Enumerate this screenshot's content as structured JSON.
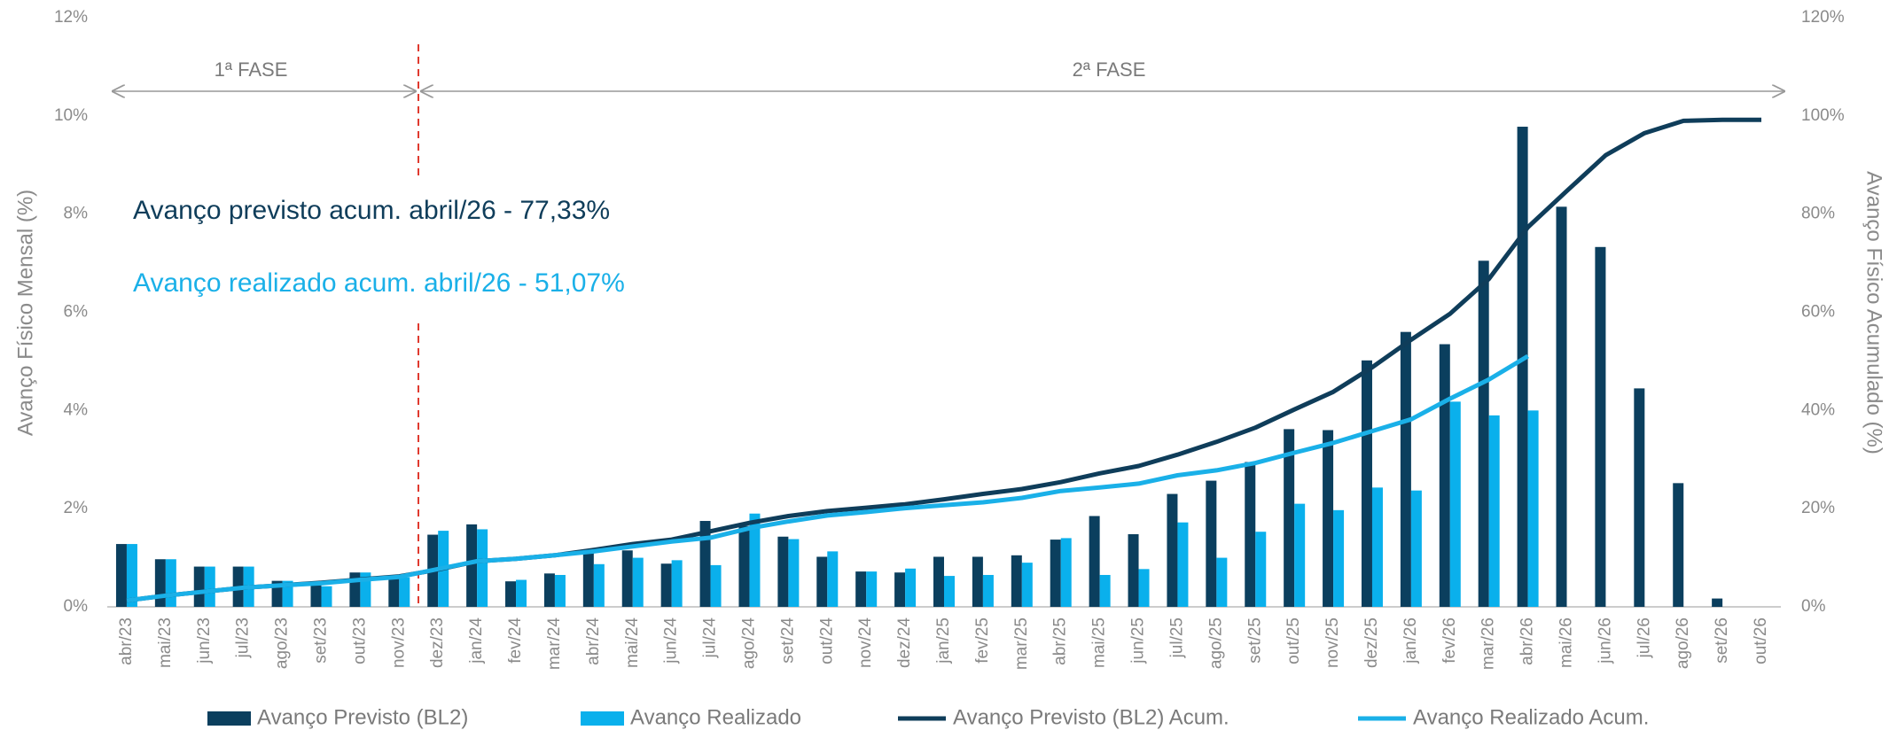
{
  "chart_data": {
    "type": "combo",
    "annotations": [
      "1ª FASE",
      "2ª FASE",
      "Avanço previsto acum. abril/26 - 77,33%",
      "Avanço realizado acum. abril/26 - 51,07%"
    ],
    "ylabel": "Avanço Físico Mensal (%)",
    "y2label": "Avanço Físico Acumulado (%)",
    "categories": [
      "abr/23",
      "mai/23",
      "jun/23",
      "jul/23",
      "ago/23",
      "set/23",
      "out/23",
      "nov/23",
      "dez/23",
      "jan/24",
      "fev/24",
      "mar/24",
      "abr/24",
      "mai/24",
      "jun/24",
      "jul/24",
      "ago/24",
      "set/24",
      "out/24",
      "nov/24",
      "dez/24",
      "jan/25",
      "fev/25",
      "mar/25",
      "abr/25",
      "mai/25",
      "jun/25",
      "jul/25",
      "ago/25",
      "set/25",
      "out/25",
      "nov/25",
      "dez/25",
      "jan/26",
      "fev/26",
      "mar/26",
      "abr/26",
      "mai/26",
      "jun/26",
      "jul/26",
      "ago/26",
      "set/26",
      "out/26"
    ],
    "series": [
      {
        "name": "Avanço Previsto (BL2)",
        "type": "bar",
        "color": "#0b3f5e",
        "values": [
          1.28,
          0.97,
          0.82,
          0.82,
          0.53,
          0.45,
          0.7,
          0.6,
          1.47,
          1.68,
          0.52,
          0.68,
          1.1,
          1.15,
          0.88,
          1.75,
          1.65,
          1.43,
          1.02,
          0.72,
          0.7,
          1.02,
          1.02,
          1.05,
          1.37,
          1.85,
          1.48,
          2.3,
          2.57,
          2.95,
          3.62,
          3.6,
          5.02,
          5.6,
          5.35,
          7.05,
          9.78,
          8.15,
          7.33,
          4.45,
          2.52,
          0.17,
          0
        ]
      },
      {
        "name": "Avanço Realizado",
        "type": "bar",
        "color": "#0ab0ec",
        "values": [
          1.28,
          0.97,
          0.82,
          0.82,
          0.53,
          0.42,
          0.7,
          0.6,
          1.55,
          1.58,
          0.55,
          0.65,
          0.87,
          1.0,
          0.95,
          0.85,
          1.9,
          1.38,
          1.13,
          0.72,
          0.78,
          0.63,
          0.65,
          0.9,
          1.4,
          0.65,
          0.77,
          1.72,
          1.0,
          1.53,
          2.1,
          1.97,
          2.43,
          2.37,
          4.18,
          3.9,
          4.0,
          null,
          null,
          null,
          null,
          null,
          null
        ]
      },
      {
        "name": "Avanço Previsto (BL2) Acum.",
        "type": "line",
        "axis": "y2",
        "color": "#0f3d5a",
        "values": [
          1.3,
          2.3,
          3.1,
          3.9,
          4.4,
          4.9,
          5.6,
          6.2,
          7.6,
          9.3,
          9.8,
          10.5,
          11.6,
          12.8,
          13.7,
          15.4,
          17.1,
          18.5,
          19.5,
          20.2,
          20.9,
          21.9,
          23.0,
          24.0,
          25.4,
          27.2,
          28.7,
          31.0,
          33.6,
          36.5,
          40.2,
          43.8,
          48.8,
          54.4,
          59.7,
          66.8,
          77.33,
          84.7,
          92.0,
          96.5,
          99.0,
          99.2,
          99.2
        ]
      },
      {
        "name": "Avanço Realizado Acum.",
        "type": "line",
        "axis": "y2",
        "color": "#1ab0e8",
        "values": [
          1.3,
          2.3,
          3.1,
          3.9,
          4.4,
          4.8,
          5.5,
          6.1,
          7.7,
          9.3,
          9.8,
          10.5,
          11.3,
          12.3,
          13.3,
          14.1,
          16.0,
          17.4,
          18.6,
          19.3,
          20.1,
          20.7,
          21.3,
          22.2,
          23.6,
          24.3,
          25.1,
          26.8,
          27.8,
          29.3,
          31.4,
          33.4,
          35.8,
          38.2,
          42.4,
          46.3,
          51.07,
          null,
          null,
          null,
          null,
          null,
          null
        ]
      }
    ],
    "ylim": [
      0,
      12
    ],
    "yticks": [
      {
        "value": 0,
        "label": "0%"
      },
      {
        "value": 2,
        "label": "2%"
      },
      {
        "value": 4,
        "label": "4%"
      },
      {
        "value": 6,
        "label": "6%"
      },
      {
        "value": 8,
        "label": "8%"
      },
      {
        "value": 10,
        "label": "10%"
      },
      {
        "value": 12,
        "label": "12%"
      }
    ],
    "y2lim": [
      0,
      120
    ],
    "y2ticks": [
      {
        "value": 0,
        "label": "0%"
      },
      {
        "value": 20,
        "label": "20%"
      },
      {
        "value": 40,
        "label": "40%"
      },
      {
        "value": 60,
        "label": "60%"
      },
      {
        "value": 80,
        "label": "80%"
      },
      {
        "value": 100,
        "label": "100%"
      },
      {
        "value": 120,
        "label": "120%"
      }
    ],
    "grid": false,
    "legend": "bottom"
  }
}
